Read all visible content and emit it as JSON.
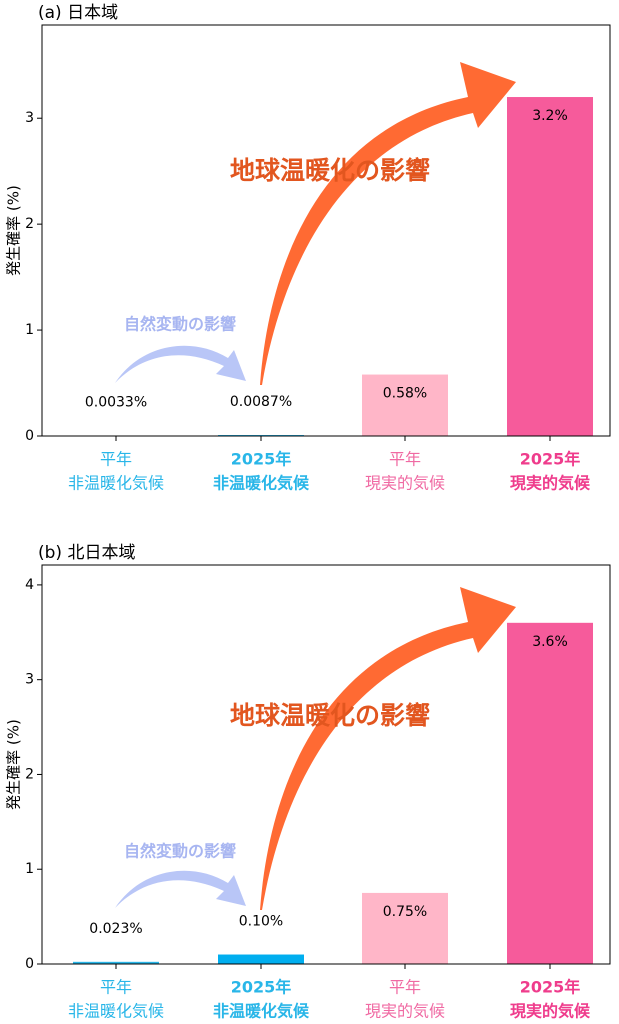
{
  "chart_data": [
    {
      "type": "bar",
      "title": "(a) 日本域",
      "ylabel": "発生確率 (%)",
      "categories": [
        [
          "平年",
          "非温暖化気候"
        ],
        [
          "2025年",
          "非温暖化気候"
        ],
        [
          "平年",
          "現実的気候"
        ],
        [
          "2025年",
          "現実的気候"
        ]
      ],
      "values": [
        0.0033,
        0.0087,
        0.58,
        3.2
      ],
      "value_labels": [
        "0.0033%",
        "0.0087%",
        "0.58%",
        "3.2%"
      ],
      "colors": [
        "#29b6e8",
        "#00aeef",
        "#ffb6c8",
        "#f65b9b"
      ],
      "label_colors": [
        "#29b6e8",
        "#29b6e8",
        "#f06aa3",
        "#ef3c8c"
      ],
      "ylim": [
        0,
        3.88
      ],
      "yticks": [
        0,
        1,
        2,
        3
      ],
      "annotations": [
        "地球温暖化の影響",
        "自然変動の影響"
      ]
    },
    {
      "type": "bar",
      "title": "(b) 北日本域",
      "ylabel": "発生確率 (%)",
      "categories": [
        [
          "平年",
          "非温暖化気候"
        ],
        [
          "2025年",
          "非温暖化気候"
        ],
        [
          "平年",
          "現実的気候"
        ],
        [
          "2025年",
          "現実的気候"
        ]
      ],
      "values": [
        0.023,
        0.1,
        0.75,
        3.6
      ],
      "value_labels": [
        "0.023%",
        "0.10%",
        "0.75%",
        "3.6%"
      ],
      "colors": [
        "#29b6e8",
        "#00aeef",
        "#ffb6c8",
        "#f65b9b"
      ],
      "label_colors": [
        "#29b6e8",
        "#29b6e8",
        "#f06aa3",
        "#ef3c8c"
      ],
      "ylim": [
        0,
        4.21
      ],
      "yticks": [
        0,
        1,
        2,
        3,
        4
      ],
      "annotations": [
        "地球温暖化の影響",
        "自然変動の影響"
      ]
    }
  ]
}
